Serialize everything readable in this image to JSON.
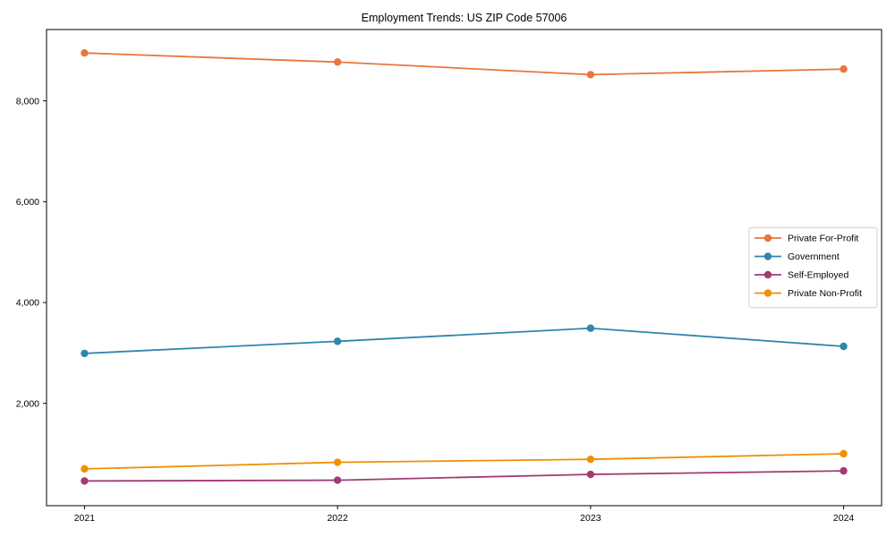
{
  "chart_data": {
    "type": "line",
    "title": "Employment Trends: US ZIP Code 57006",
    "categories": [
      "2021",
      "2022",
      "2023",
      "2024"
    ],
    "x": [
      2021,
      2022,
      2023,
      2024
    ],
    "series": [
      {
        "name": "Private For-Profit",
        "color": "#E8763B",
        "values": [
          8950,
          8770,
          8520,
          8630
        ]
      },
      {
        "name": "Government",
        "color": "#2E86AB",
        "values": [
          2990,
          3230,
          3490,
          3130
        ]
      },
      {
        "name": "Self-Employed",
        "color": "#A23B72",
        "values": [
          460,
          475,
          590,
          660
        ]
      },
      {
        "name": "Private Non-Profit",
        "color": "#F18F01",
        "values": [
          700,
          830,
          890,
          1000
        ]
      }
    ],
    "yticks": [
      2000,
      4000,
      6000,
      8000
    ],
    "ytick_labels": [
      "2,000",
      "4,000",
      "6,000",
      "8,000"
    ],
    "ylim": [
      -30,
      9415
    ],
    "xlim": [
      2020.85,
      2024.15
    ],
    "grid": false,
    "legend_position": "center right",
    "legend_border_color": "#cccccc",
    "axis_color": "#000000",
    "background_color": "#ffffff"
  }
}
